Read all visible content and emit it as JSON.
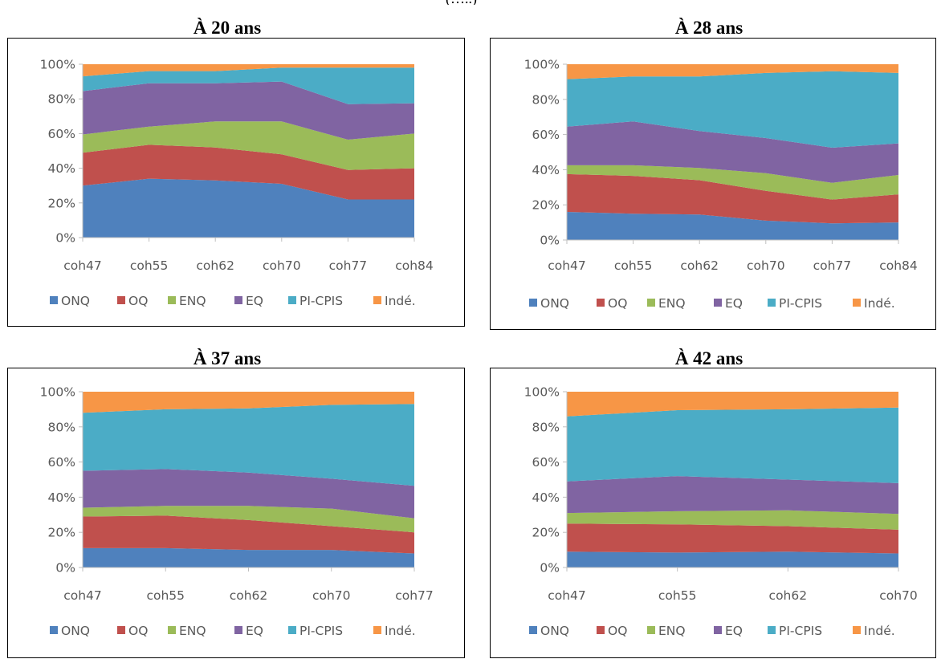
{
  "chart_data": [
    {
      "type": "area",
      "stacked": "percent",
      "title": "À 20 ans",
      "categories": [
        "coh47",
        "coh55",
        "coh62",
        "coh70",
        "coh77",
        "coh84"
      ],
      "y_ticks": [
        "0%",
        "20%",
        "40%",
        "60%",
        "80%",
        "100%"
      ],
      "ylim": [
        0,
        100
      ],
      "legend_position": "bottom",
      "grid": false,
      "series": [
        {
          "name": "ONQ",
          "color": "#4F81BD",
          "values": [
            30,
            34,
            33,
            31,
            22,
            22
          ]
        },
        {
          "name": "OQ",
          "color": "#C0504D",
          "values": [
            19,
            19.5,
            19,
            17,
            17,
            18
          ]
        },
        {
          "name": "ENQ",
          "color": "#9BBB59",
          "values": [
            10.5,
            10.5,
            15,
            19,
            17.5,
            20
          ]
        },
        {
          "name": "EQ",
          "color": "#8064A2",
          "values": [
            25,
            25,
            22,
            23,
            20.5,
            17.5
          ]
        },
        {
          "name": "PI-CPIS",
          "color": "#4BACC6",
          "values": [
            8.5,
            7,
            7,
            8,
            21,
            20.5
          ]
        },
        {
          "name": "Indé.",
          "color": "#F79646",
          "values": [
            7,
            4,
            4,
            2,
            2,
            2
          ]
        }
      ]
    },
    {
      "type": "area",
      "stacked": "percent",
      "title": "À 28 ans",
      "categories": [
        "coh47",
        "coh55",
        "coh62",
        "coh70",
        "coh77",
        "coh84"
      ],
      "y_ticks": [
        "0%",
        "20%",
        "40%",
        "60%",
        "80%",
        "100%"
      ],
      "ylim": [
        0,
        100
      ],
      "legend_position": "bottom",
      "grid": false,
      "series": [
        {
          "name": "ONQ",
          "color": "#4F81BD",
          "values": [
            16,
            15,
            14.5,
            11,
            9.5,
            10
          ]
        },
        {
          "name": "OQ",
          "color": "#C0504D",
          "values": [
            21.5,
            21.5,
            19.5,
            17,
            13.5,
            16
          ]
        },
        {
          "name": "ENQ",
          "color": "#9BBB59",
          "values": [
            5,
            6,
            7,
            10,
            9.5,
            11
          ]
        },
        {
          "name": "EQ",
          "color": "#8064A2",
          "values": [
            22,
            25,
            21,
            20,
            20,
            18
          ]
        },
        {
          "name": "PI-CPIS",
          "color": "#4BACC6",
          "values": [
            27,
            25.5,
            31,
            37,
            43.5,
            40
          ]
        },
        {
          "name": "Indé.",
          "color": "#F79646",
          "values": [
            8.5,
            7,
            7,
            5,
            4,
            5
          ]
        }
      ]
    },
    {
      "type": "area",
      "stacked": "percent",
      "title": "À 37 ans",
      "categories": [
        "coh47",
        "coh55",
        "coh62",
        "coh70",
        "coh77"
      ],
      "y_ticks": [
        "0%",
        "20%",
        "40%",
        "60%",
        "80%",
        "100%"
      ],
      "ylim": [
        0,
        100
      ],
      "legend_position": "bottom",
      "grid": false,
      "series": [
        {
          "name": "ONQ",
          "color": "#4F81BD",
          "values": [
            11,
            11,
            10,
            10,
            8
          ]
        },
        {
          "name": "OQ",
          "color": "#C0504D",
          "values": [
            18,
            18.5,
            17,
            13.5,
            12
          ]
        },
        {
          "name": "ENQ",
          "color": "#9BBB59",
          "values": [
            5,
            5.5,
            8,
            10,
            8
          ]
        },
        {
          "name": "EQ",
          "color": "#8064A2",
          "values": [
            21,
            21,
            19,
            17,
            18.5
          ]
        },
        {
          "name": "PI-CPIS",
          "color": "#4BACC6",
          "values": [
            33,
            34,
            36.5,
            42,
            46.5
          ]
        },
        {
          "name": "Indé.",
          "color": "#F79646",
          "values": [
            12,
            10,
            9.5,
            7.5,
            7
          ]
        }
      ]
    },
    {
      "type": "area",
      "stacked": "percent",
      "title": "À 42 ans",
      "categories": [
        "coh47",
        "coh55",
        "coh62",
        "coh70"
      ],
      "y_ticks": [
        "0%",
        "20%",
        "40%",
        "60%",
        "80%",
        "100%"
      ],
      "ylim": [
        0,
        100
      ],
      "legend_position": "bottom",
      "grid": false,
      "series": [
        {
          "name": "ONQ",
          "color": "#4F81BD",
          "values": [
            9,
            8.5,
            9,
            8
          ]
        },
        {
          "name": "OQ",
          "color": "#C0504D",
          "values": [
            16,
            16,
            14.5,
            13.5
          ]
        },
        {
          "name": "ENQ",
          "color": "#9BBB59",
          "values": [
            6,
            7.5,
            9,
            9
          ]
        },
        {
          "name": "EQ",
          "color": "#8064A2",
          "values": [
            18,
            20,
            17.5,
            17.5
          ]
        },
        {
          "name": "PI-CPIS",
          "color": "#4BACC6",
          "values": [
            37,
            37.5,
            40,
            43
          ]
        },
        {
          "name": "Indé.",
          "color": "#F79646",
          "values": [
            14,
            10.5,
            10,
            9
          ]
        }
      ]
    }
  ],
  "header_fragment": "(…..)"
}
